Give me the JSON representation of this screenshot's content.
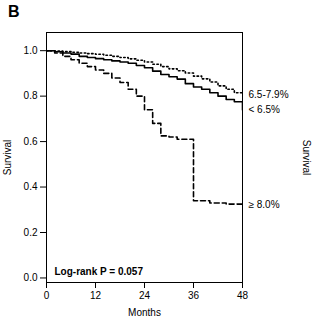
{
  "chart_data": {
    "type": "step",
    "title": "B",
    "xlabel": "Months",
    "ylabel": "Survival",
    "y2label": "Survival",
    "xlim": [
      0,
      48
    ],
    "ylim": [
      -0.02,
      1.08
    ],
    "xticks": [
      0,
      12,
      24,
      36,
      48
    ],
    "yticks": [
      {
        "value": 0.0,
        "label": "0.0"
      },
      0.2,
      0.4,
      0.6,
      0.8,
      {
        "value": 1.0,
        "label": "1.0"
      }
    ],
    "grid": false,
    "annotations": [
      {
        "text": "Log-rank P = 0.057"
      }
    ],
    "series": [
      {
        "name": "6.5-7.9%",
        "color": "black",
        "line_style": "dotted",
        "x": [
          0,
          2,
          4,
          6,
          8,
          10,
          12,
          14,
          16,
          18,
          20,
          22,
          24,
          26,
          28,
          30,
          32,
          34,
          36,
          38,
          40,
          42,
          44,
          46,
          48
        ],
        "values": [
          1.0,
          0.998,
          0.996,
          0.993,
          0.99,
          0.987,
          0.984,
          0.98,
          0.975,
          0.97,
          0.964,
          0.958,
          0.95,
          0.94,
          0.93,
          0.92,
          0.912,
          0.902,
          0.888,
          0.876,
          0.862,
          0.845,
          0.83,
          0.815,
          0.808
        ]
      },
      {
        "name": "< 6.5%",
        "color": "black",
        "line_style": "solid",
        "x": [
          0,
          2,
          4,
          6,
          8,
          10,
          12,
          14,
          16,
          18,
          20,
          22,
          24,
          26,
          28,
          30,
          32,
          34,
          36,
          38,
          40,
          42,
          44,
          46,
          48
        ],
        "values": [
          1.0,
          0.995,
          0.99,
          0.985,
          0.975,
          0.97,
          0.965,
          0.96,
          0.955,
          0.95,
          0.945,
          0.935,
          0.925,
          0.91,
          0.895,
          0.885,
          0.875,
          0.855,
          0.84,
          0.83,
          0.815,
          0.8,
          0.785,
          0.775,
          0.74
        ]
      },
      {
        "name": "≥ 8.0%",
        "color": "black",
        "line_style": "dashed",
        "x": [
          0,
          2,
          4,
          6,
          8,
          10,
          12,
          14,
          16,
          18,
          20,
          22,
          24,
          26,
          28,
          30,
          32,
          36,
          40,
          44,
          48
        ],
        "values": [
          1.0,
          0.99,
          0.975,
          0.96,
          0.945,
          0.93,
          0.915,
          0.9,
          0.88,
          0.86,
          0.83,
          0.8,
          0.74,
          0.68,
          0.625,
          0.62,
          0.61,
          0.34,
          0.33,
          0.325,
          0.32
        ]
      }
    ]
  }
}
